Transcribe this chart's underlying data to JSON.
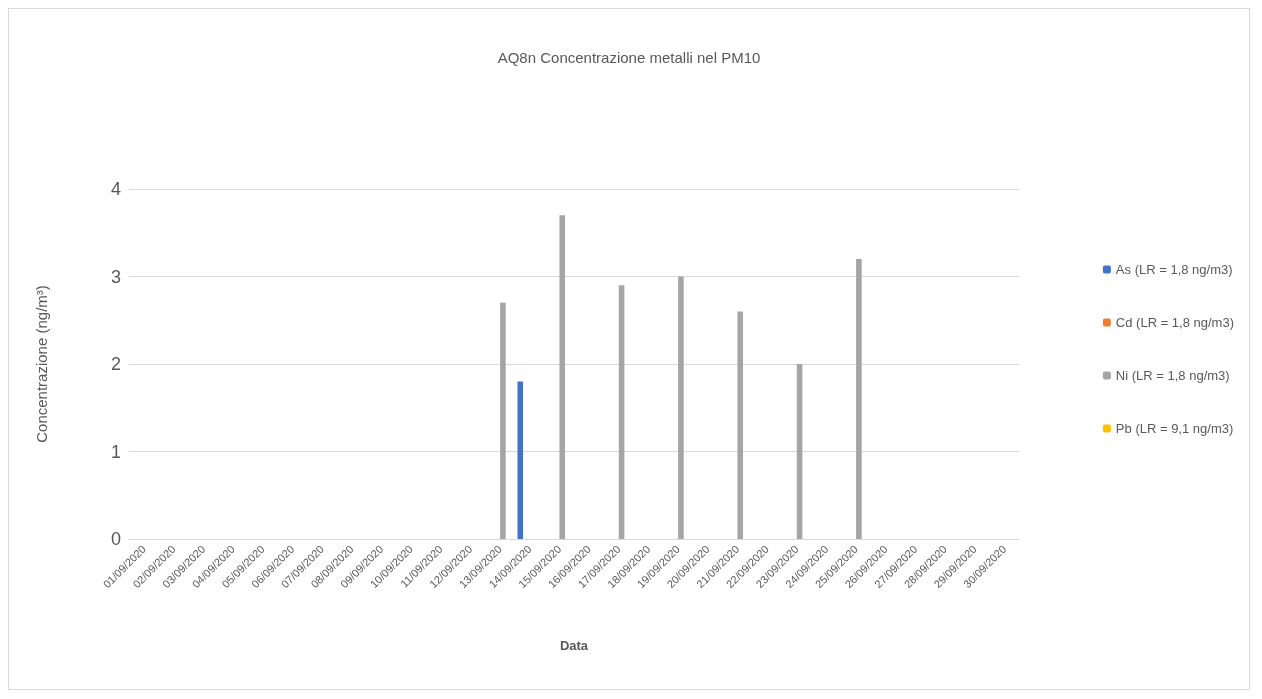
{
  "chart_data": {
    "type": "bar",
    "title": "AQ8n Concentrazione metalli nel PM10",
    "xlabel": "Data",
    "ylabel": "Concentrazione (ng/m³)",
    "categories": [
      "01/09/2020",
      "02/09/2020",
      "03/09/2020",
      "04/09/2020",
      "05/09/2020",
      "06/09/2020",
      "07/09/2020",
      "08/09/2020",
      "09/09/2020",
      "10/09/2020",
      "11/09/2020",
      "12/09/2020",
      "13/09/2020",
      "14/09/2020",
      "15/09/2020",
      "16/09/2020",
      "17/09/2020",
      "18/09/2020",
      "19/09/2020",
      "20/09/2020",
      "21/09/2020",
      "22/09/2020",
      "23/09/2020",
      "24/09/2020",
      "25/09/2020",
      "26/09/2020",
      "27/09/2020",
      "28/09/2020",
      "29/09/2020",
      "30/09/2020"
    ],
    "series": [
      {
        "name": "As (LR = 1,8 ng/m3)",
        "color": "#4472c4",
        "values": [
          0,
          0,
          0,
          0,
          0,
          0,
          0,
          0,
          0,
          0,
          0,
          0,
          0,
          1.8,
          0,
          0,
          0,
          0,
          0,
          0,
          0,
          0,
          0,
          0,
          0,
          0,
          0,
          0,
          0,
          0
        ]
      },
      {
        "name": "Cd (LR = 1,8 ng/m3)",
        "color": "#ed7d31",
        "values": [
          0,
          0,
          0,
          0,
          0,
          0,
          0,
          0,
          0,
          0,
          0,
          0,
          0,
          0,
          0,
          0,
          0,
          0,
          0,
          0,
          0,
          0,
          0,
          0,
          0,
          0,
          0,
          0,
          0,
          0
        ]
      },
      {
        "name": "Ni (LR = 1,8 ng/m3)",
        "color": "#a5a5a5",
        "values": [
          0,
          0,
          0,
          0,
          0,
          0,
          0,
          0,
          0,
          0,
          0,
          0,
          2.7,
          0,
          3.7,
          0,
          2.9,
          0,
          3,
          0,
          2.6,
          0,
          2,
          0,
          3.2,
          0,
          0,
          0,
          0,
          0
        ]
      },
      {
        "name": "Pb (LR = 9,1 ng/m3)",
        "color": "#ffc000",
        "values": [
          0,
          0,
          0,
          0,
          0,
          0,
          0,
          0,
          0,
          0,
          0,
          0,
          0,
          0,
          0,
          0,
          0,
          0,
          0,
          0,
          0,
          0,
          0,
          0,
          0,
          0,
          0,
          0,
          0,
          0
        ]
      }
    ],
    "ylim": [
      0,
      4
    ],
    "yticks": [
      0,
      1,
      2,
      3,
      4
    ],
    "grid": "y",
    "legend": "right"
  }
}
